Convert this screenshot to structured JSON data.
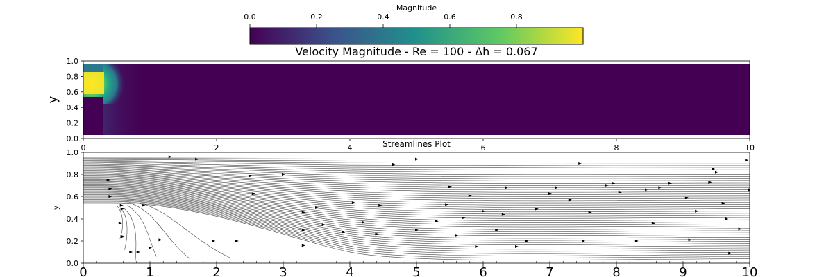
{
  "chart_data": [
    {
      "type": "colorbar",
      "label": "Magnitude",
      "range": [
        0.0,
        1.0
      ],
      "ticks": [
        "0.0",
        "0.2",
        "0.4",
        "0.6",
        "0.8"
      ],
      "tick_values": [
        0.0,
        0.2,
        0.4,
        0.6,
        0.8
      ],
      "colormap": "viridis",
      "colors": [
        "#440154",
        "#3b528b",
        "#21918c",
        "#5ec962",
        "#fde725"
      ]
    },
    {
      "type": "heatmap",
      "title": "Velocity Magnitude - Re = 100 - Δh = 0.067",
      "xlabel": "",
      "ylabel": "y",
      "xlim": [
        0,
        10
      ],
      "ylim": [
        0,
        1
      ],
      "xticks": [
        "0",
        "2",
        "4",
        "6",
        "8",
        "10"
      ],
      "xtick_values": [
        0,
        2,
        4,
        6,
        8,
        10
      ],
      "yticks": [
        "0.0",
        "0.2",
        "0.4",
        "0.6",
        "0.8",
        "1.0"
      ],
      "ytick_values": [
        0.0,
        0.2,
        0.4,
        0.6,
        0.8,
        1.0
      ],
      "grid_step": 0.067,
      "inlet": {
        "y_range": [
          0.53,
          1.0
        ],
        "peak_magnitude": 1.0,
        "peak_y": 0.75
      },
      "downstream_magnitude": 0.0
    },
    {
      "type": "streamlines",
      "title": "Streamlines Plot",
      "xlabel": "",
      "ylabel": "y",
      "xlim": [
        0,
        10
      ],
      "ylim": [
        0,
        1
      ],
      "xticks": [
        "0",
        "1",
        "2",
        "3",
        "4",
        "5",
        "6",
        "7",
        "8",
        "9",
        "10"
      ],
      "xtick_values": [
        0,
        1,
        2,
        3,
        4,
        5,
        6,
        7,
        8,
        9,
        10
      ],
      "yticks": [
        "0.0",
        "0.2",
        "0.4",
        "0.6",
        "0.8",
        "1.0"
      ],
      "ytick_values": [
        0.0,
        0.2,
        0.4,
        0.6,
        0.8,
        1.0
      ],
      "line_color": "#444444",
      "arrows": [
        [
          0.37,
          0.75
        ],
        [
          0.4,
          0.67
        ],
        [
          0.4,
          0.6
        ],
        [
          0.57,
          0.52
        ],
        [
          0.58,
          0.49
        ],
        [
          0.9,
          0.52
        ],
        [
          0.55,
          0.36
        ],
        [
          0.58,
          0.24
        ],
        [
          0.71,
          0.1
        ],
        [
          0.82,
          0.1
        ],
        [
          1.0,
          0.14
        ],
        [
          1.15,
          0.21
        ],
        [
          1.3,
          0.96
        ],
        [
          1.7,
          0.94
        ],
        [
          1.95,
          0.2
        ],
        [
          2.3,
          0.2
        ],
        [
          2.5,
          0.79
        ],
        [
          2.55,
          0.63
        ],
        [
          3.0,
          0.8
        ],
        [
          3.3,
          0.46
        ],
        [
          3.5,
          0.5
        ],
        [
          3.3,
          0.3
        ],
        [
          3.6,
          0.35
        ],
        [
          3.9,
          0.28
        ],
        [
          3.3,
          0.16
        ],
        [
          4.05,
          0.55
        ],
        [
          4.2,
          0.37
        ],
        [
          4.4,
          0.26
        ],
        [
          4.45,
          0.52
        ],
        [
          4.65,
          0.89
        ],
        [
          5.0,
          0.94
        ],
        [
          5.0,
          0.3
        ],
        [
          5.3,
          0.38
        ],
        [
          5.6,
          0.25
        ],
        [
          5.5,
          0.69
        ],
        [
          5.45,
          0.53
        ],
        [
          5.7,
          0.41
        ],
        [
          5.8,
          0.61
        ],
        [
          5.9,
          0.15
        ],
        [
          6.0,
          0.47
        ],
        [
          6.2,
          0.3
        ],
        [
          6.35,
          0.68
        ],
        [
          6.3,
          0.44
        ],
        [
          6.5,
          0.15
        ],
        [
          6.65,
          0.2
        ],
        [
          6.8,
          0.49
        ],
        [
          7.0,
          0.63
        ],
        [
          7.1,
          0.68
        ],
        [
          7.3,
          0.57
        ],
        [
          7.45,
          0.9
        ],
        [
          7.5,
          0.2
        ],
        [
          7.6,
          0.46
        ],
        [
          7.85,
          0.7
        ],
        [
          7.95,
          0.72
        ],
        [
          8.05,
          0.64
        ],
        [
          8.3,
          0.2
        ],
        [
          8.45,
          0.66
        ],
        [
          8.55,
          0.36
        ],
        [
          8.65,
          0.68
        ],
        [
          8.8,
          0.72
        ],
        [
          9.05,
          0.59
        ],
        [
          9.1,
          0.21
        ],
        [
          9.2,
          0.47
        ],
        [
          9.4,
          0.73
        ],
        [
          9.45,
          0.85
        ],
        [
          9.5,
          0.82
        ],
        [
          9.6,
          0.54
        ],
        [
          9.65,
          0.4
        ],
        [
          9.7,
          0.09
        ],
        [
          9.85,
          0.31
        ],
        [
          9.95,
          0.93
        ],
        [
          10.0,
          0.66
        ]
      ]
    }
  ]
}
